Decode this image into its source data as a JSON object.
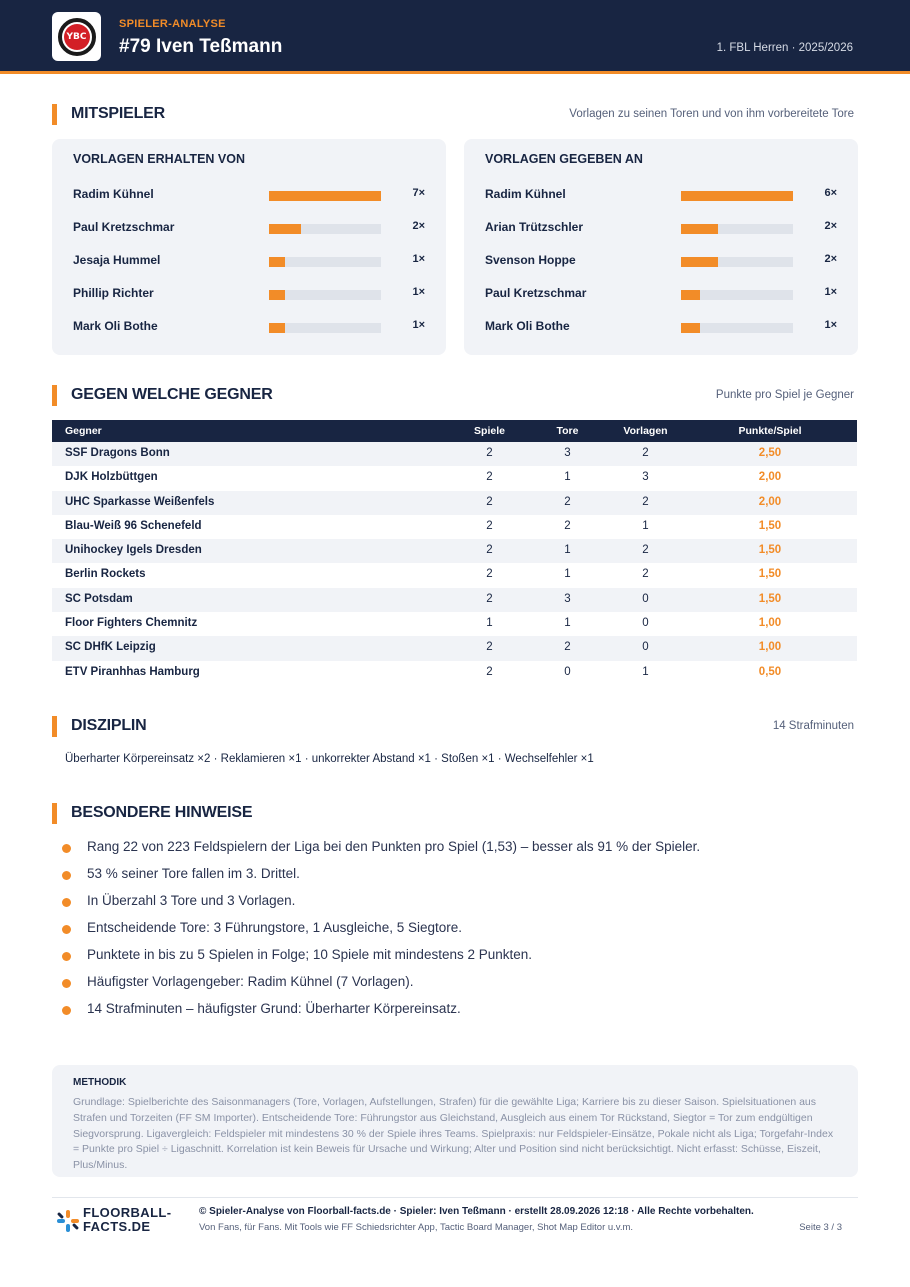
{
  "header": {
    "kicker": "SPIELER-ANALYSE",
    "title": "#79 Iven Teßmann",
    "league": "1. FBL Herren · 2025/2026",
    "logo_text": "YBC"
  },
  "teammates": {
    "heading": "MITSPIELER",
    "note": "Vorlagen zu seinen Toren und von ihm vorbereitete Tore",
    "received": {
      "title": "VORLAGEN ERHALTEN VON",
      "items": [
        {
          "name": "Radim Kühnel",
          "count": "7×",
          "value": 7
        },
        {
          "name": "Paul Kretzschmar",
          "count": "2×",
          "value": 2
        },
        {
          "name": "Jesaja Hummel",
          "count": "1×",
          "value": 1
        },
        {
          "name": "Phillip Richter",
          "count": "1×",
          "value": 1
        },
        {
          "name": "Mark Oli Bothe",
          "count": "1×",
          "value": 1
        }
      ]
    },
    "given": {
      "title": "VORLAGEN GEGEBEN AN",
      "items": [
        {
          "name": "Radim Kühnel",
          "count": "6×",
          "value": 6
        },
        {
          "name": "Arian Trützschler",
          "count": "2×",
          "value": 2
        },
        {
          "name": "Svenson Hoppe",
          "count": "2×",
          "value": 2
        },
        {
          "name": "Paul Kretzschmar",
          "count": "1×",
          "value": 1
        },
        {
          "name": "Mark Oli Bothe",
          "count": "1×",
          "value": 1
        }
      ]
    }
  },
  "opponents": {
    "heading": "GEGEN WELCHE GEGNER",
    "note": "Punkte pro Spiel je Gegner",
    "columns": [
      "Gegner",
      "Spiele",
      "Tore",
      "Vorlagen",
      "Punkte/Spiel"
    ],
    "rows": [
      [
        "SSF Dragons Bonn",
        "2",
        "3",
        "2",
        "2,50"
      ],
      [
        "DJK Holzbüttgen",
        "2",
        "1",
        "3",
        "2,00"
      ],
      [
        "UHC Sparkasse Weißenfels",
        "2",
        "2",
        "2",
        "2,00"
      ],
      [
        "Blau-Weiß 96 Schenefeld",
        "2",
        "2",
        "1",
        "1,50"
      ],
      [
        "Unihockey Igels Dresden",
        "2",
        "1",
        "2",
        "1,50"
      ],
      [
        "Berlin Rockets",
        "2",
        "1",
        "2",
        "1,50"
      ],
      [
        "SC Potsdam",
        "2",
        "3",
        "0",
        "1,50"
      ],
      [
        "Floor Fighters Chemnitz",
        "1",
        "1",
        "0",
        "1,00"
      ],
      [
        "SC DHfK Leipzig",
        "2",
        "2",
        "0",
        "1,00"
      ],
      [
        "ETV Piranhhas Hamburg",
        "2",
        "0",
        "1",
        "0,50"
      ]
    ]
  },
  "discipline": {
    "heading": "DISZIPLIN",
    "note": "14 Strafminuten",
    "text": "Überharter Körpereinsatz ×2 · Reklamieren ×1 · unkorrekter Abstand ×1 · Stoßen ×1 · Wechselfehler ×1"
  },
  "remarks": {
    "heading": "BESONDERE HINWEISE",
    "items": [
      "Rang 22 von 223 Feldspielern der Liga bei den Punkten pro Spiel (1,53) – besser als 91 % der Spieler.",
      "53 % seiner Tore fallen im 3. Drittel.",
      "In Überzahl 3 Tore und 3 Vorlagen.",
      "Entscheidende Tore: 3 Führungstore, 1 Ausgleiche, 5 Siegtore.",
      "Punktete in bis zu 5 Spielen in Folge; 10 Spiele mit mindestens 2 Punkten.",
      "Häufigster Vorlagengeber: Radim Kühnel (7 Vorlagen).",
      "14 Strafminuten – häufigster Grund: Überharter Körpereinsatz."
    ]
  },
  "method": {
    "title": "METHODIK",
    "text": "Grundlage: Spielberichte des Saisonmanagers (Tore, Vorlagen, Aufstellungen, Strafen) für die gewählte Liga; Karriere bis zu dieser Saison. Spielsituationen aus Strafen und Torzeiten (FF SM Importer). Entscheidende Tore: Führungstor aus Gleichstand, Ausgleich aus einem Tor Rückstand, Siegtor = Tor zum endgültigen Siegvorsprung. Ligavergleich: Feldspieler mit mindestens 30 % der Spiele ihres Teams. Spielpraxis: nur Feldspieler-Einsätze, Pokale nicht als Liga; Torgefahr-Index = Punkte pro Spiel ÷ Ligaschnitt. Korrelation ist kein Beweis für Ursache und Wirkung; Alter und Position sind nicht berücksichtigt. Nicht erfasst: Schüsse, Eiszeit, Plus/Minus."
  },
  "footer": {
    "logo_line1": "FLOORBALL-",
    "logo_line2": "FACTS.DE",
    "line1": "© Spieler-Analyse von Floorball-facts.de · Spieler: Iven Teßmann · erstellt 28.09.2026 12:18 · Alle Rechte vorbehalten.",
    "line2": "Von Fans, für Fans. Mit Tools wie FF Schiedsrichter App, Tactic Board Manager, Shot Map Editor u.v.m.",
    "page": "Seite 3 / 3"
  },
  "colors": {
    "navy": "#182542",
    "accent": "#f28c28",
    "card_bg": "#f1f3f7"
  }
}
